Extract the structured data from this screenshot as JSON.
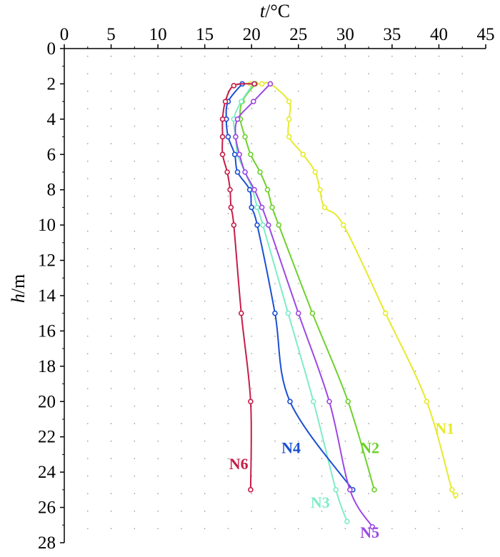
{
  "chart_data": {
    "type": "line",
    "x_axis": {
      "label_italic": "t",
      "label_unit": "/°C",
      "position": "top",
      "range": [
        0,
        45
      ],
      "ticks": [
        0,
        5,
        10,
        15,
        20,
        25,
        30,
        35,
        40,
        45
      ]
    },
    "y_axis": {
      "label_italic": "h",
      "label_unit": "/m",
      "inverted": true,
      "range": [
        0,
        28
      ],
      "ticks": [
        0,
        2,
        4,
        6,
        8,
        10,
        12,
        14,
        16,
        18,
        20,
        22,
        24,
        26,
        28
      ]
    },
    "grid": "dotted",
    "series": [
      {
        "name": "N1",
        "color": "#e6ea2c",
        "label_anchor": [
          39.6,
          21.5
        ],
        "points": [
          [
            19.9,
            2.0
          ],
          [
            21.1,
            2.0
          ],
          [
            22.0,
            2.0
          ],
          [
            24.0,
            3.0
          ],
          [
            24.0,
            4.0
          ],
          [
            24.0,
            5.0
          ],
          [
            25.5,
            6.0
          ],
          [
            26.8,
            7.0
          ],
          [
            27.3,
            8.0
          ],
          [
            27.8,
            9.0
          ],
          [
            29.8,
            10.0
          ],
          [
            34.3,
            15.0
          ],
          [
            38.7,
            20.0
          ],
          [
            41.4,
            25.0
          ],
          [
            41.8,
            25.3
          ]
        ]
      },
      {
        "name": "N2",
        "color": "#6ed12c",
        "label_anchor": [
          31.6,
          22.6
        ],
        "points": [
          [
            20.4,
            2.0
          ],
          [
            19.0,
            3.0
          ],
          [
            18.8,
            4.0
          ],
          [
            19.3,
            5.0
          ],
          [
            19.9,
            6.0
          ],
          [
            20.9,
            7.0
          ],
          [
            21.7,
            8.0
          ],
          [
            22.2,
            9.0
          ],
          [
            22.9,
            10.0
          ],
          [
            26.5,
            15.0
          ],
          [
            30.3,
            20.0
          ],
          [
            33.1,
            25.0
          ]
        ]
      },
      {
        "name": "N3",
        "color": "#7eecc6",
        "label_anchor": [
          26.3,
          25.7
        ],
        "points": [
          [
            20.2,
            2.0
          ],
          [
            18.9,
            3.0
          ],
          [
            18.1,
            4.0
          ],
          [
            18.3,
            5.0
          ],
          [
            18.5,
            6.0
          ],
          [
            19.3,
            7.0
          ],
          [
            20.1,
            8.0
          ],
          [
            20.6,
            9.0
          ],
          [
            21.2,
            10.0
          ],
          [
            23.9,
            15.0
          ],
          [
            26.6,
            20.0
          ],
          [
            29.0,
            25.0
          ],
          [
            30.2,
            26.8
          ]
        ]
      },
      {
        "name": "N4",
        "color": "#1b50d2",
        "label_anchor": [
          23.2,
          22.6
        ],
        "points": [
          [
            19.0,
            2.0
          ],
          [
            17.5,
            3.0
          ],
          [
            17.3,
            4.0
          ],
          [
            17.5,
            5.0
          ],
          [
            18.2,
            6.0
          ],
          [
            18.5,
            7.0
          ],
          [
            19.8,
            8.0
          ],
          [
            20.0,
            9.0
          ],
          [
            20.6,
            10.0
          ],
          [
            22.5,
            15.0
          ],
          [
            24.1,
            20.0
          ],
          [
            30.8,
            25.0
          ]
        ]
      },
      {
        "name": "N5",
        "color": "#9c48e4",
        "label_anchor": [
          31.6,
          27.4
        ],
        "points": [
          [
            22.0,
            2.0
          ],
          [
            20.2,
            3.0
          ],
          [
            18.5,
            4.0
          ],
          [
            18.3,
            5.0
          ],
          [
            18.7,
            6.0
          ],
          [
            19.3,
            7.0
          ],
          [
            20.3,
            8.0
          ],
          [
            21.1,
            9.0
          ],
          [
            21.8,
            10.0
          ],
          [
            25.0,
            15.0
          ],
          [
            28.3,
            20.0
          ],
          [
            30.5,
            25.0
          ],
          [
            32.9,
            27.1
          ]
        ]
      },
      {
        "name": "N6",
        "color": "#c51e48",
        "label_anchor": [
          17.6,
          23.5
        ],
        "points": [
          [
            20.3,
            2.0
          ],
          [
            18.1,
            2.1
          ],
          [
            17.2,
            3.0
          ],
          [
            16.9,
            4.0
          ],
          [
            16.9,
            5.0
          ],
          [
            16.9,
            6.0
          ],
          [
            17.4,
            7.0
          ],
          [
            17.7,
            8.0
          ],
          [
            17.8,
            9.0
          ],
          [
            18.1,
            10.0
          ],
          [
            18.9,
            15.0
          ],
          [
            19.9,
            20.0
          ],
          [
            19.9,
            25.0
          ]
        ]
      }
    ]
  }
}
